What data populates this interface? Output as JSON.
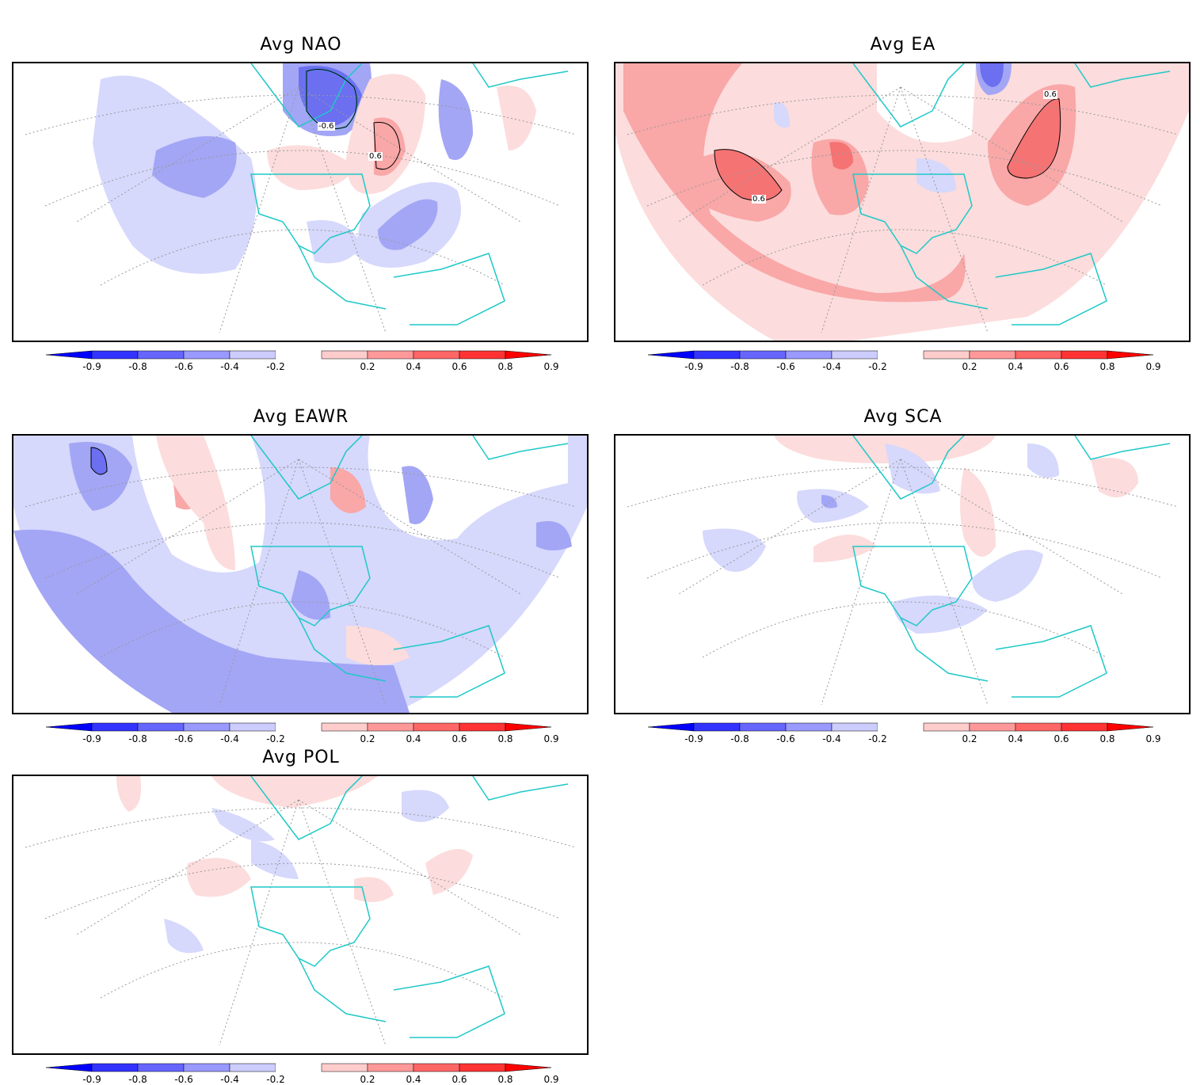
{
  "panels": [
    {
      "title": "Avg NAO",
      "contour_labels": [
        "-0.6",
        "0.6"
      ]
    },
    {
      "title": "Avg EA",
      "contour_labels": [
        "0.6",
        "0.6"
      ]
    },
    {
      "title": "Avg EAWR",
      "contour_labels": []
    },
    {
      "title": "Avg SCA",
      "contour_labels": []
    },
    {
      "title": "Avg POL",
      "contour_labels": []
    }
  ],
  "colorbar": {
    "ticks": [
      "-0.9",
      "-0.8",
      "-0.6",
      "-0.4",
      "-0.2",
      "0.2",
      "0.4",
      "0.6",
      "0.8",
      "0.9"
    ],
    "colors": [
      "#0000ff",
      "#3333ff",
      "#6666ff",
      "#9999ff",
      "#ccccff",
      "#ffffff",
      "#ffcccc",
      "#ff9999",
      "#ff6666",
      "#ff3333",
      "#ff0000"
    ]
  },
  "colors": {
    "coastline": "#1fc8c8",
    "grid": "#999999",
    "neg_light": "#d6d8fc",
    "neg_mid": "#a3a6f5",
    "neg_dark": "#6b6ff0",
    "pos_light": "#fcdcdc",
    "pos_mid": "#f9a7a7",
    "pos_dark": "#f57373"
  }
}
